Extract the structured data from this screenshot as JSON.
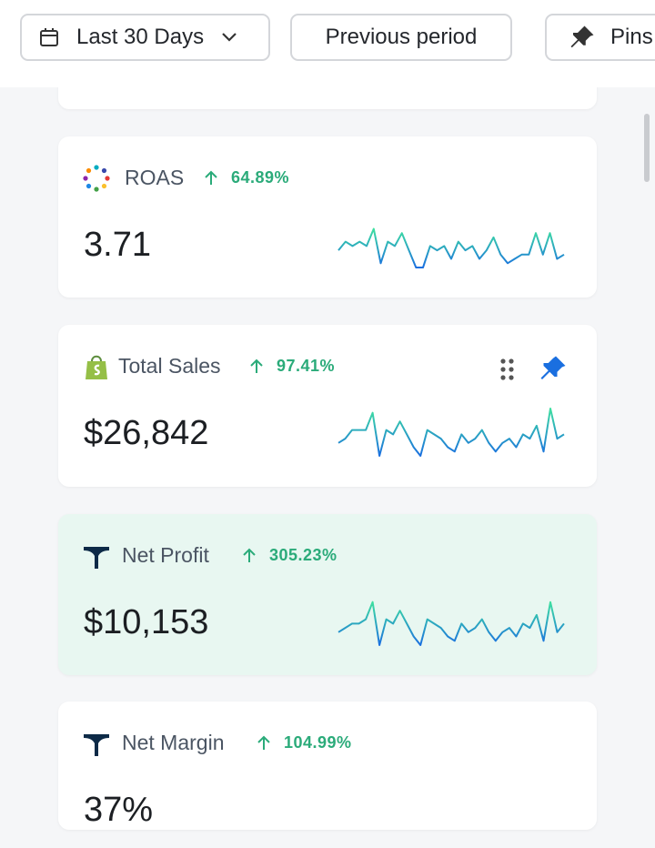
{
  "filters": {
    "date_range": "Last 30 Days",
    "comparison": "Previous period",
    "pins": "Pins"
  },
  "metrics": [
    {
      "name": "ROAS",
      "change": "64.89%",
      "value": "3.71",
      "sparkline": [
        4,
        6,
        5,
        6,
        5,
        9,
        1,
        6,
        5,
        8,
        4,
        0,
        0,
        5,
        4,
        5,
        2,
        6,
        4,
        5,
        2,
        4,
        7,
        3,
        1,
        2,
        3,
        3,
        8,
        3,
        8,
        2,
        3
      ]
    },
    {
      "name": "Total Sales",
      "change": "97.41%",
      "value": "$26,842",
      "sparkline": [
        3,
        4,
        6,
        6,
        6,
        10,
        0,
        6,
        5,
        8,
        5,
        2,
        0,
        6,
        5,
        4,
        2,
        1,
        5,
        3,
        4,
        6,
        3,
        1,
        3,
        4,
        2,
        5,
        4,
        7,
        1,
        11,
        4,
        5
      ]
    },
    {
      "name": "Net Profit",
      "change": "305.23%",
      "value": "$10,153",
      "sparkline": [
        3,
        4,
        5,
        5,
        6,
        10,
        0,
        6,
        5,
        8,
        5,
        2,
        0,
        6,
        5,
        4,
        2,
        1,
        5,
        3,
        4,
        6,
        3,
        1,
        3,
        4,
        2,
        5,
        4,
        7,
        1,
        10,
        3,
        5
      ]
    },
    {
      "name": "Net Margin",
      "change": "104.99%",
      "value": "37%",
      "sparkline": []
    }
  ]
}
